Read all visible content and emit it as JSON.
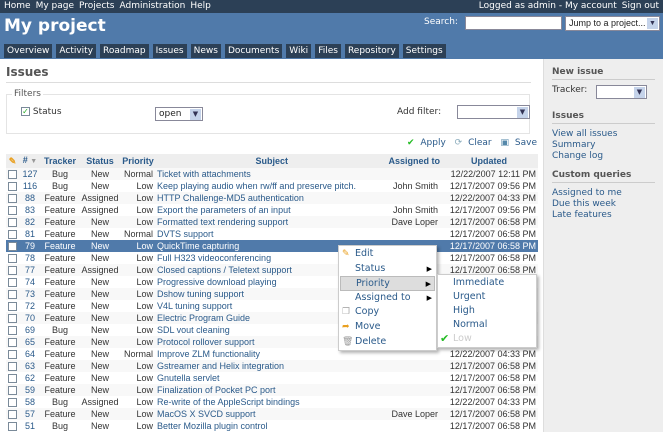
{
  "topmenu": {
    "items": [
      "Home",
      "My page",
      "Projects",
      "Administration",
      "Help"
    ],
    "logged": "Logged as admin",
    "sep": " - ",
    "my_account": "My account",
    "sign_out": "Sign out"
  },
  "header": {
    "title": "My project",
    "search_label": "Search:",
    "search_value": "",
    "jump": "Jump to a project..."
  },
  "tabs": [
    "Overview",
    "Activity",
    "Roadmap",
    "Issues",
    "News",
    "Documents",
    "Wiki",
    "Files",
    "Repository",
    "Settings"
  ],
  "main": {
    "title": "Issues",
    "filters_legend": "Filters",
    "status_label": "Status",
    "status_checked": true,
    "status_value": "open",
    "add_filter_label": "Add filter:",
    "add_filter_value": "",
    "apply": "Apply",
    "clear": "Clear",
    "save": "Save"
  },
  "columns": [
    "#",
    "Tracker",
    "Status",
    "Priority",
    "Subject",
    "Assigned to",
    "Updated"
  ],
  "issues": [
    [
      "127",
      "Bug",
      "New",
      "Normal",
      "Ticket with attachments",
      "",
      "12/22/2007 12:11 PM"
    ],
    [
      "116",
      "Bug",
      "New",
      "Low",
      "Keep playing audio when rw/ff and preserve pitch.",
      "John Smith",
      "12/17/2007 09:56 PM"
    ],
    [
      "88",
      "Feature",
      "Assigned",
      "Low",
      "HTTP Challenge-MD5 authentication",
      "",
      "12/22/2007 04:33 PM"
    ],
    [
      "83",
      "Feature",
      "Assigned",
      "Low",
      "Export the parameters of an input",
      "John Smith",
      "12/17/2007 09:56 PM"
    ],
    [
      "82",
      "Feature",
      "New",
      "Low",
      "Formatted text rendering support",
      "Dave Loper",
      "12/17/2007 06:58 PM"
    ],
    [
      "81",
      "Feature",
      "New",
      "Normal",
      "DVTS support",
      "",
      "12/17/2007 06:58 PM"
    ],
    [
      "79",
      "Feature",
      "New",
      "Low",
      "QuickTime capturing",
      "",
      "12/17/2007 06:58 PM"
    ],
    [
      "78",
      "Feature",
      "New",
      "Low",
      "Full H323 videoconferencing",
      "",
      "12/17/2007 06:58 PM"
    ],
    [
      "77",
      "Feature",
      "Assigned",
      "Low",
      "Closed captions / Teletext support",
      "",
      "12/17/2007 06:58 PM"
    ],
    [
      "74",
      "Feature",
      "New",
      "Low",
      "Progressive download playing",
      "",
      ""
    ],
    [
      "73",
      "Feature",
      "New",
      "Low",
      "Dshow tuning support",
      "",
      ""
    ],
    [
      "72",
      "Feature",
      "New",
      "Low",
      "V4L tuning support",
      "",
      ""
    ],
    [
      "70",
      "Feature",
      "New",
      "Low",
      "Electric Program Guide",
      "",
      ""
    ],
    [
      "69",
      "Bug",
      "New",
      "Low",
      "SDL vout cleaning",
      "",
      ""
    ],
    [
      "65",
      "Feature",
      "New",
      "Low",
      "Protocol rollover support",
      "",
      ""
    ],
    [
      "64",
      "Feature",
      "New",
      "Normal",
      "Improve ZLM functionality",
      "",
      "12/22/2007 04:33 PM"
    ],
    [
      "63",
      "Feature",
      "New",
      "Low",
      "Gstreamer and Helix integration",
      "",
      "12/17/2007 06:58 PM"
    ],
    [
      "62",
      "Feature",
      "New",
      "Low",
      "Gnutella servlet",
      "",
      "12/17/2007 06:58 PM"
    ],
    [
      "59",
      "Feature",
      "New",
      "Low",
      "Finalization of Pocket PC port",
      "",
      "12/17/2007 06:58 PM"
    ],
    [
      "58",
      "Bug",
      "Assigned",
      "Low",
      "Re-write of the AppleScript bindings",
      "",
      "12/22/2007 04:33 PM"
    ],
    [
      "57",
      "Feature",
      "New",
      "Low",
      "MacOS X SVCD support",
      "Dave Loper",
      "12/17/2007 06:58 PM"
    ],
    [
      "51",
      "Bug",
      "New",
      "Low",
      "Better Mozilla plugin control",
      "",
      "12/17/2007 06:58 PM"
    ]
  ],
  "selected_issue": "79",
  "context_menu": {
    "items": [
      {
        "label": "Edit",
        "icon": "pencil-icon"
      },
      {
        "label": "Status",
        "submenu": true
      },
      {
        "label": "Priority",
        "submenu": true,
        "active": true
      },
      {
        "label": "Assigned to",
        "submenu": true
      },
      {
        "label": "Copy",
        "icon": "copy-icon"
      },
      {
        "label": "Move",
        "icon": "move-icon"
      },
      {
        "label": "Delete",
        "icon": "trash-icon"
      }
    ],
    "priority_submenu": [
      "Immediate",
      "Urgent",
      "High",
      "Normal",
      "Low"
    ],
    "current_priority": "Low"
  },
  "sidebar": {
    "new_issue": "New issue",
    "tracker_label": "Tracker:",
    "issues_heading": "Issues",
    "issue_links": [
      "View all issues",
      "Summary",
      "Change log"
    ],
    "custom_heading": "Custom queries",
    "custom_links": [
      "Assigned to me",
      "Due this week",
      "Late features"
    ]
  },
  "colors": {
    "header": "#507aaa",
    "topbar": "#2c4056",
    "link": "#2a5a8a",
    "selected_row": "#507aaa"
  }
}
